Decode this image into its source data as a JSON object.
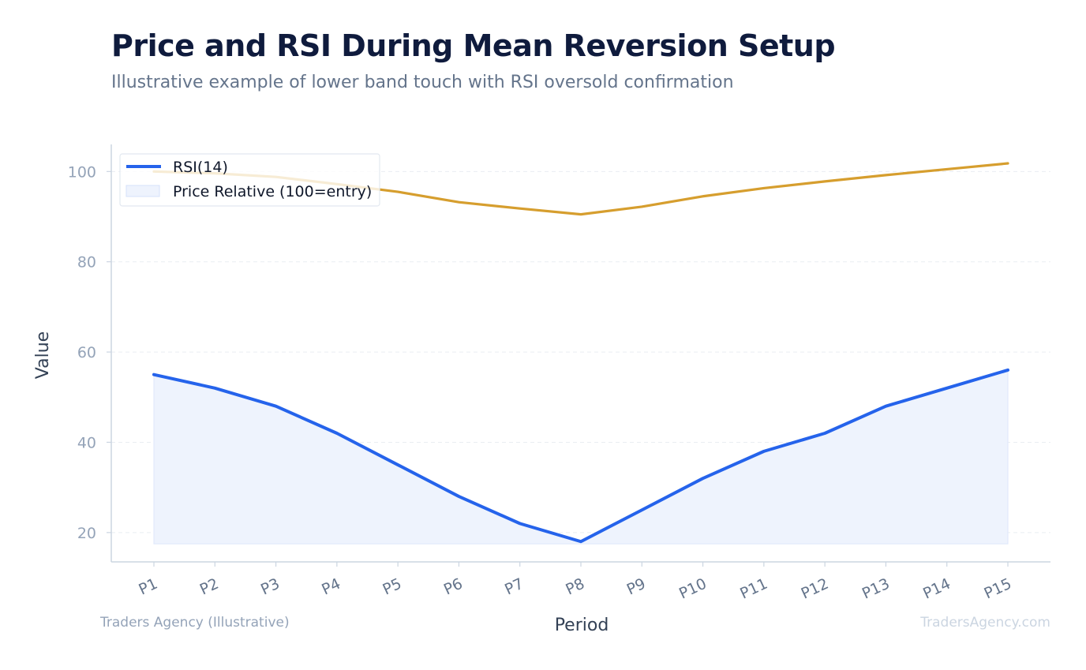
{
  "header": {
    "title": "Price and RSI During Mean Reversion Setup",
    "subtitle": "Illustrative example of lower band touch with RSI oversold confirmation"
  },
  "footer": {
    "source": "Traders Agency (Illustrative)",
    "brand": "TradersAgency.com"
  },
  "colors": {
    "rsi_line": "#2563eb",
    "rsi_fill": "#eef3fd",
    "price_line": "#d69e2e",
    "grid": "#e9edf2",
    "axis": "#cbd5e1"
  },
  "chart_data": {
    "type": "line",
    "xlabel": "Period",
    "ylabel": "Value",
    "categories": [
      "P1",
      "P2",
      "P3",
      "P4",
      "P5",
      "P6",
      "P7",
      "P8",
      "P9",
      "P10",
      "P11",
      "P12",
      "P13",
      "P14",
      "P15"
    ],
    "ylim": [
      13.5,
      106
    ],
    "yticks": [
      20,
      40,
      60,
      80,
      100
    ],
    "grid": true,
    "legend_position": "top-left",
    "series": [
      {
        "name": "RSI(14)",
        "kind": "line",
        "values": [
          55,
          52,
          48,
          42,
          35,
          28,
          22,
          18,
          25,
          32,
          38,
          42,
          48,
          52,
          56
        ]
      },
      {
        "name": "Price Relative (100=entry)",
        "kind": "area-fill",
        "values": [
          55,
          52,
          48,
          42,
          35,
          28,
          22,
          18,
          25,
          32,
          38,
          42,
          48,
          52,
          56
        ]
      },
      {
        "name": "",
        "kind": "line",
        "values": [
          100,
          99.6,
          98.8,
          97.2,
          95.5,
          93.2,
          91.8,
          90.5,
          92.2,
          94.5,
          96.3,
          97.8,
          99.2,
          100.5,
          101.8
        ]
      }
    ]
  }
}
